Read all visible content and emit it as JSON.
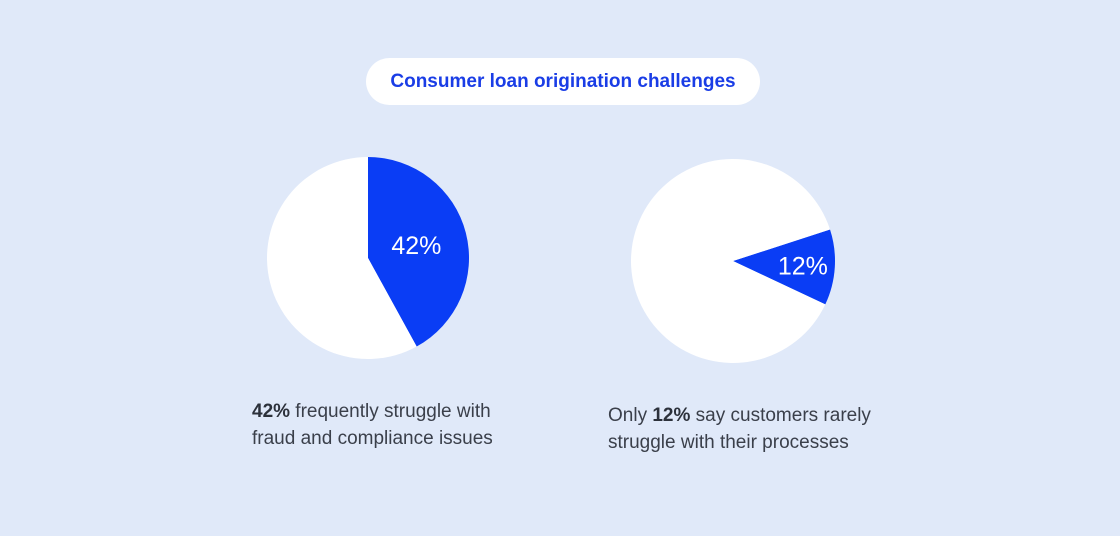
{
  "title": "Consumer loan origination challenges",
  "colors": {
    "background": "#e0e9f9",
    "accent": "#0a3df5",
    "remainder": "#ffffff",
    "title_text": "#1a3de6",
    "caption_text": "#3a3f4a"
  },
  "chart_data": [
    {
      "type": "pie",
      "slices": [
        {
          "label": "42%",
          "value": 42,
          "color": "#0a3df5"
        },
        {
          "label": "",
          "value": 58,
          "color": "#ffffff"
        }
      ],
      "caption": {
        "highlight": "42%",
        "line1_rest": " frequently struggle with",
        "line2": "fraud and compliance issues"
      }
    },
    {
      "type": "pie",
      "slices": [
        {
          "label": "12%",
          "value": 12,
          "color": "#0a3df5"
        },
        {
          "label": "",
          "value": 88,
          "color": "#ffffff"
        }
      ],
      "caption": {
        "prefix": "Only ",
        "highlight": "12%",
        "line1_rest": " say customers rarely",
        "line2": "struggle with their processes"
      }
    }
  ]
}
